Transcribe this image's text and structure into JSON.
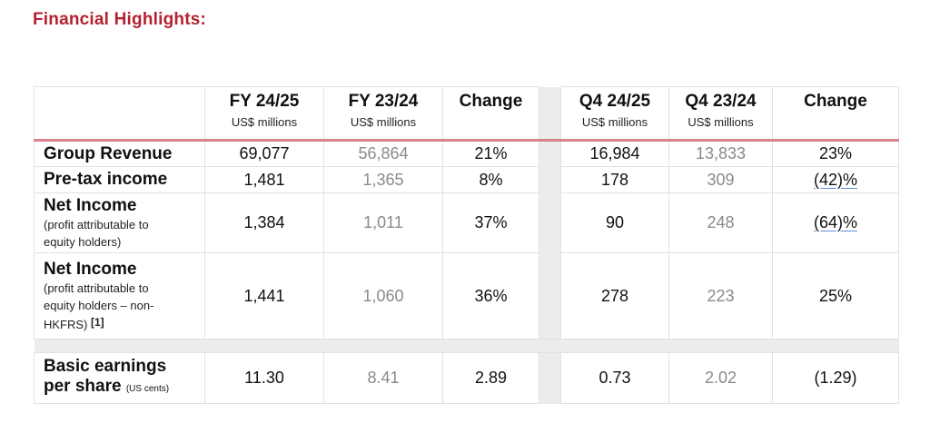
{
  "title": "Financial Highlights:",
  "columns": [
    {
      "label": "FY 24/25",
      "unit": "US$ millions"
    },
    {
      "label": "FY 23/24",
      "unit": "US$ millions"
    },
    {
      "label": "Change",
      "unit": ""
    },
    {
      "label": "Q4 24/25",
      "unit": "US$ millions"
    },
    {
      "label": "Q4 23/24",
      "unit": "US$ millions"
    },
    {
      "label": "Change",
      "unit": ""
    }
  ],
  "rows": [
    {
      "label": "Group Revenue",
      "values": [
        "69,077",
        "56,864",
        "21%",
        "16,984",
        "13,833",
        "23%"
      ]
    },
    {
      "label": "Pre-tax income",
      "values": [
        "1,481",
        "1,365",
        "8%",
        "178",
        "309",
        "(42)%"
      ]
    },
    {
      "label": "Net Income",
      "sub": [
        "(profit attributable to",
        "equity holders)"
      ],
      "values": [
        "1,384",
        "1,011",
        "37%",
        "90",
        "248",
        "(64)%"
      ]
    },
    {
      "label": "Net Income",
      "sub": [
        "(profit attributable to",
        "equity holders – non-",
        "HKFRS)"
      ],
      "ref": "[1]",
      "values": [
        "1,441",
        "1,060",
        "36%",
        "278",
        "223",
        "25%"
      ]
    },
    {
      "label_line1": "Basic earnings",
      "label_line2": "per share",
      "label_small": "(US cents)",
      "values": [
        "11.30",
        "8.41",
        "2.89",
        "0.73",
        "2.02",
        "(1.29)"
      ]
    }
  ]
}
